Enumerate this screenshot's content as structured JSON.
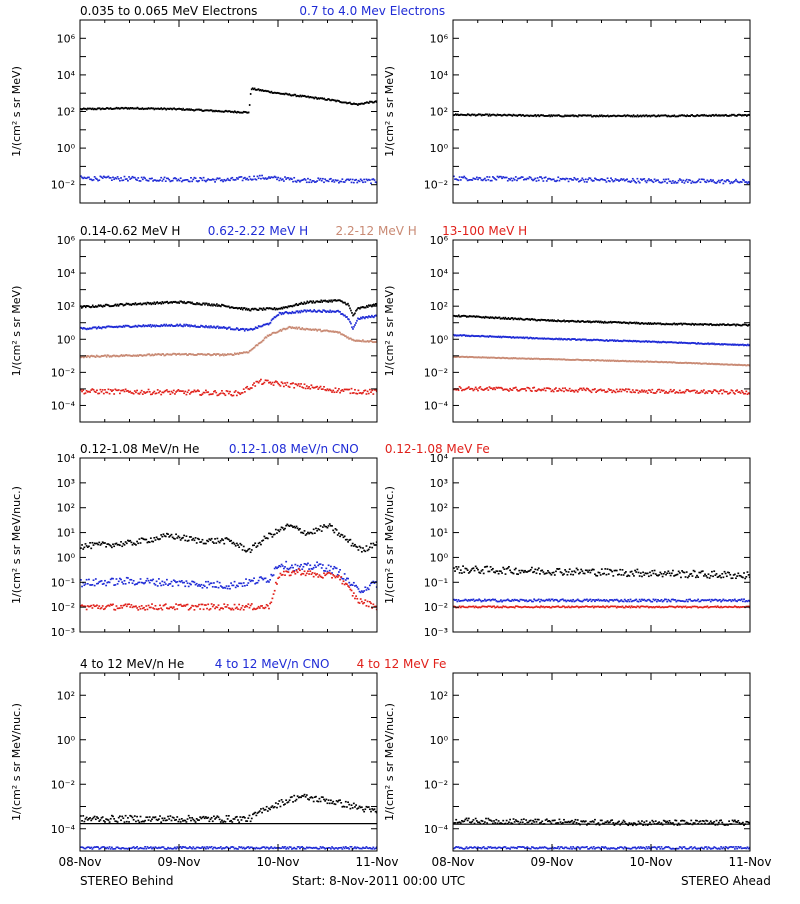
{
  "colors": {
    "black": "#000000",
    "blue": "#1f2bd6",
    "tan": "#c98a74",
    "red": "#e0201a",
    "axis": "#000000"
  },
  "footer": {
    "left": "STEREO Behind",
    "center": "Start:  8-Nov-2011 00:00 UTC",
    "right": "STEREO Ahead"
  },
  "x_tick_labels": [
    "08-Nov",
    "09-Nov",
    "10-Nov",
    "11-Nov"
  ],
  "chart_data": [
    {
      "type": "scatter",
      "panel": "row1-behind",
      "spacecraft": "STEREO Behind",
      "scale": "log",
      "ylim": [
        0.001,
        10000000
      ],
      "ylabel": "1/(cm² s sr MeV)",
      "y_ticks": [
        "10^6",
        "10^4",
        "10^2",
        "10^0",
        "10^-2"
      ],
      "legend": [
        {
          "text": "0.035 to 0.065 MeV Electrons",
          "color": "black"
        },
        {
          "text": "0.7 to 4.0 Mev Electrons",
          "color": "blue"
        }
      ],
      "series": [
        {
          "name": "0.035 to 0.065 MeV Electrons",
          "color": "black",
          "style": "line",
          "x": [
            0,
            0.5,
            1,
            1.5,
            1.7,
            1.72,
            2.0,
            2.5,
            2.8,
            2.9,
            3.0
          ],
          "y": [
            150,
            170,
            150,
            110,
            100,
            2000,
            1100,
            500,
            270,
            350,
            380
          ],
          "scatter": 0.04
        },
        {
          "name": "0.7 to 4.0 Mev Electrons",
          "color": "blue",
          "style": "dots",
          "x": [
            0,
            1.5,
            1.8,
            2.2,
            3.0
          ],
          "y": [
            0.025,
            0.02,
            0.028,
            0.02,
            0.017
          ],
          "scatter": 0.12
        }
      ]
    },
    {
      "type": "scatter",
      "panel": "row1-ahead",
      "spacecraft": "STEREO Ahead",
      "scale": "log",
      "ylim": [
        0.001,
        10000000
      ],
      "ylabel": "1/(cm² s sr MeV)",
      "y_ticks": [
        "10^6",
        "10^4",
        "10^2",
        "10^0",
        "10^-2"
      ],
      "legend": [],
      "series": [
        {
          "name": "0.035 to 0.065 MeV Electrons",
          "color": "black",
          "style": "line",
          "x": [
            0,
            1,
            2,
            3
          ],
          "y": [
            75,
            65,
            65,
            70
          ],
          "scatter": 0.04
        },
        {
          "name": "0.7 to 4.0 Mev Electrons",
          "color": "blue",
          "style": "dots",
          "x": [
            0,
            1,
            2,
            3
          ],
          "y": [
            0.025,
            0.022,
            0.018,
            0.016
          ],
          "scatter": 0.12
        }
      ]
    },
    {
      "type": "scatter",
      "panel": "row2-behind",
      "spacecraft": "STEREO Behind",
      "scale": "log",
      "ylim": [
        1e-05,
        1000000
      ],
      "ylabel": "1/(cm² s sr MeV)",
      "y_ticks": [
        "10^6",
        "10^4",
        "10^2",
        "10^0",
        "10^-2",
        "10^-4"
      ],
      "legend": [
        {
          "text": "0.14-0.62 MeV H",
          "color": "black"
        },
        {
          "text": "0.62-2.22 MeV H",
          "color": "blue"
        },
        {
          "text": "2.2-12 MeV H",
          "color": "tan"
        },
        {
          "text": "13-100 MeV H",
          "color": "red"
        }
      ],
      "series": [
        {
          "name": "0.14-0.62 MeV H",
          "color": "black",
          "style": "line",
          "x": [
            0,
            0.5,
            1,
            1.4,
            1.7,
            2.0,
            2.3,
            2.6,
            2.7,
            2.75,
            2.8,
            3.0
          ],
          "y": [
            100,
            150,
            200,
            130,
            70,
            80,
            200,
            250,
            150,
            30,
            80,
            150
          ],
          "scatter": 0.06
        },
        {
          "name": "0.62-2.22 MeV H",
          "color": "blue",
          "style": "line",
          "x": [
            0,
            0.5,
            1,
            1.4,
            1.7,
            1.9,
            2.0,
            2.3,
            2.6,
            2.7,
            2.75,
            2.8,
            3.0
          ],
          "y": [
            5,
            7,
            8,
            6,
            4,
            10,
            40,
            60,
            55,
            20,
            5,
            20,
            30
          ],
          "scatter": 0.06
        },
        {
          "name": "2.2-12 MeV H",
          "color": "tan",
          "style": "line",
          "x": [
            0,
            0.5,
            1,
            1.5,
            1.7,
            1.9,
            2.1,
            2.4,
            2.6,
            2.75,
            3.0
          ],
          "y": [
            0.1,
            0.12,
            0.14,
            0.13,
            0.2,
            2,
            6,
            4,
            3,
            1,
            0.8
          ],
          "scatter": 0.05
        },
        {
          "name": "13-100 MeV H",
          "color": "red",
          "style": "dots",
          "x": [
            0,
            1,
            1.6,
            1.8,
            2.1,
            2.6,
            3.0
          ],
          "y": [
            0.0008,
            0.0007,
            0.0006,
            0.003,
            0.002,
            0.0009,
            0.0007
          ],
          "scatter": 0.15
        }
      ]
    },
    {
      "type": "scatter",
      "panel": "row2-ahead",
      "spacecraft": "STEREO Ahead",
      "scale": "log",
      "ylim": [
        1e-05,
        1000000
      ],
      "ylabel": "1/(cm² s sr MeV)",
      "y_ticks": [
        "10^6",
        "10^4",
        "10^2",
        "10^0",
        "10^-2",
        "10^-4"
      ],
      "legend": [],
      "series": [
        {
          "name": "0.14-0.62 MeV H",
          "color": "black",
          "style": "line",
          "x": [
            0,
            1,
            2,
            3
          ],
          "y": [
            30,
            15,
            10,
            8
          ],
          "scatter": 0.04
        },
        {
          "name": "0.62-2.22 MeV H",
          "color": "blue",
          "style": "line",
          "x": [
            0,
            1,
            2,
            3
          ],
          "y": [
            2,
            1.2,
            0.8,
            0.5
          ],
          "scatter": 0.03
        },
        {
          "name": "2.2-12 MeV H",
          "color": "tan",
          "style": "line",
          "x": [
            0,
            1,
            2,
            3
          ],
          "y": [
            0.1,
            0.07,
            0.05,
            0.03
          ],
          "scatter": 0.02
        },
        {
          "name": "13-100 MeV H",
          "color": "red",
          "style": "dots",
          "x": [
            0,
            1,
            2,
            3
          ],
          "y": [
            0.0012,
            0.001,
            0.0008,
            0.0007
          ],
          "scatter": 0.12
        }
      ]
    },
    {
      "type": "scatter",
      "panel": "row3-behind",
      "spacecraft": "STEREO Behind",
      "scale": "log",
      "ylim": [
        0.001,
        10000
      ],
      "ylabel": "1/(cm² s sr MeV/nuc.)",
      "y_ticks": [
        "10^4",
        "10^3",
        "10^2",
        "10^1",
        "10^0",
        "10^-1",
        "10^-2",
        "10^-3"
      ],
      "legend": [
        {
          "text": "0.12-1.08 MeV/n He",
          "color": "black"
        },
        {
          "text": "0.12-1.08 MeV/n CNO",
          "color": "blue"
        },
        {
          "text": "0.12-1.08 MeV Fe",
          "color": "red"
        }
      ],
      "series": [
        {
          "name": "0.12-1.08 MeV/n He",
          "color": "black",
          "style": "dots",
          "x": [
            0,
            0.5,
            0.9,
            1.2,
            1.5,
            1.7,
            1.9,
            2.1,
            2.3,
            2.5,
            2.7,
            2.85,
            3.0
          ],
          "y": [
            3,
            4,
            8,
            5,
            5,
            2,
            8,
            20,
            10,
            20,
            5,
            2,
            5
          ],
          "scatter": 0.12
        },
        {
          "name": "0.12-1.08 MeV/n CNO",
          "color": "blue",
          "style": "dots",
          "x": [
            0,
            0.5,
            1,
            1.5,
            1.9,
            2.0,
            2.2,
            2.4,
            2.6,
            2.8,
            3.0
          ],
          "y": [
            0.1,
            0.12,
            0.1,
            0.08,
            0.15,
            0.6,
            0.4,
            0.5,
            0.3,
            0.05,
            0.1
          ],
          "scatter": 0.15
        },
        {
          "name": "0.12-1.08 MeV Fe",
          "color": "red",
          "style": "dots",
          "x": [
            0,
            1,
            1.9,
            2.0,
            2.2,
            2.4,
            2.6,
            2.8,
            3.0
          ],
          "y": [
            0.011,
            0.011,
            0.011,
            0.2,
            0.3,
            0.2,
            0.2,
            0.02,
            0.011
          ],
          "scatter": 0.12
        }
      ]
    },
    {
      "type": "scatter",
      "panel": "row3-ahead",
      "spacecraft": "STEREO Ahead",
      "scale": "log",
      "ylim": [
        0.001,
        10000
      ],
      "ylabel": "1/(cm² s sr MeV/nuc.)",
      "y_ticks": [
        "10^4",
        "10^3",
        "10^2",
        "10^1",
        "10^0",
        "10^-1",
        "10^-2",
        "10^-3"
      ],
      "legend": [],
      "series": [
        {
          "name": "0.12-1.08 MeV/n He",
          "color": "black",
          "style": "dots",
          "x": [
            0,
            1,
            2,
            3
          ],
          "y": [
            0.35,
            0.3,
            0.25,
            0.2
          ],
          "scatter": 0.15
        },
        {
          "name": "0.12-1.08 MeV/n CNO",
          "color": "blue",
          "style": "dots",
          "x": [
            0,
            1,
            2,
            3
          ],
          "y": [
            0.02,
            0.02,
            0.02,
            0.02
          ],
          "scatter": 0.05
        },
        {
          "name": "0.12-1.08 MeV Fe",
          "color": "red",
          "style": "dots",
          "x": [
            0,
            1,
            2,
            3
          ],
          "y": [
            0.011,
            0.011,
            0.011,
            0.011
          ],
          "scatter": 0.03
        }
      ]
    },
    {
      "type": "scatter",
      "panel": "row4-behind",
      "spacecraft": "STEREO Behind",
      "scale": "log",
      "ylim": [
        1e-05,
        1000
      ],
      "ylabel": "1/(cm² s sr MeV/nuc.)",
      "y_ticks": [
        "10^2",
        "10^0",
        "10^-2",
        "10^-4"
      ],
      "legend": [
        {
          "text": "4 to 12 MeV/n He",
          "color": "black"
        },
        {
          "text": "4 to 12 MeV/n CNO",
          "color": "blue"
        },
        {
          "text": "4 to 12 MeV Fe",
          "color": "red"
        }
      ],
      "series": [
        {
          "name": "4 to 12 MeV/n He",
          "color": "black",
          "style": "dots",
          "x": [
            0,
            1,
            1.7,
            1.9,
            2.2,
            2.5,
            2.8,
            3.0
          ],
          "y": [
            0.0003,
            0.0003,
            0.0003,
            0.001,
            0.003,
            0.002,
            0.001,
            0.0006
          ],
          "scatter": 0.15
        },
        {
          "name": "4 to 12 MeV/n He background",
          "color": "black",
          "style": "line",
          "x": [
            0,
            3
          ],
          "y": [
            0.00017,
            0.00017
          ],
          "scatter": 0.0
        },
        {
          "name": "4 to 12 MeV/n CNO",
          "color": "blue",
          "style": "dots",
          "x": [
            0,
            1,
            2,
            3
          ],
          "y": [
            1.5e-05,
            1.5e-05,
            1.5e-05,
            1.5e-05
          ],
          "scatter": 0.05
        }
      ]
    },
    {
      "type": "scatter",
      "panel": "row4-ahead",
      "spacecraft": "STEREO Ahead",
      "scale": "log",
      "ylim": [
        1e-05,
        1000
      ],
      "ylabel": "1/(cm² s sr MeV/nuc.)",
      "y_ticks": [
        "10^2",
        "10^0",
        "10^-2",
        "10^-4"
      ],
      "legend": [],
      "series": [
        {
          "name": "4 to 12 MeV/n He",
          "color": "black",
          "style": "dots",
          "x": [
            0,
            1,
            2,
            3
          ],
          "y": [
            0.00025,
            0.00022,
            0.0002,
            0.0002
          ],
          "scatter": 0.12
        },
        {
          "name": "4 to 12 MeV/n He background",
          "color": "black",
          "style": "line",
          "x": [
            0,
            3
          ],
          "y": [
            0.00016,
            0.00016
          ],
          "scatter": 0.0
        },
        {
          "name": "4 to 12 MeV/n CNO",
          "color": "blue",
          "style": "dots",
          "x": [
            0,
            1,
            2,
            3
          ],
          "y": [
            1.5e-05,
            1.5e-05,
            1.5e-05,
            1.5e-05
          ],
          "scatter": 0.05
        }
      ]
    }
  ]
}
